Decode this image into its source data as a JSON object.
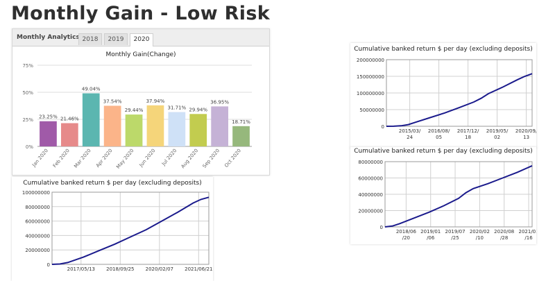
{
  "page": {
    "title": "Monthly Gain - Low Risk"
  },
  "analytics": {
    "header_label": "Monthly Analytics",
    "tabs": [
      "2018",
      "2019",
      "2020"
    ],
    "active_tab": "2020"
  },
  "chart_data": [
    {
      "type": "bar",
      "title": "Monthly Gain(Change)",
      "categories": [
        "Jan 2020",
        "Feb 2020",
        "Mar 2020",
        "Apr 2020",
        "May 2020",
        "Jun 2020",
        "Jul 2020",
        "Aug 2020",
        "Sep 2020",
        "Oct 2020"
      ],
      "values": [
        23.25,
        21.46,
        49.04,
        37.54,
        29.44,
        37.94,
        31.71,
        29.94,
        36.95,
        18.71
      ],
      "value_labels": [
        "23.25%",
        "21.46%",
        "49.04%",
        "37.54%",
        "29.44%",
        "37.94%",
        "31.71%",
        "29.94%",
        "36.95%",
        "18.71%"
      ],
      "colors": [
        "#a05aa8",
        "#e68a8a",
        "#5bb6b0",
        "#fbb489",
        "#bcd96a",
        "#f5d57a",
        "#cfe1f7",
        "#c2cc4f",
        "#c5b2d6",
        "#96b87c"
      ],
      "yticks": [
        "0%",
        "25%",
        "50%",
        "75%"
      ],
      "ylim": [
        0,
        75
      ],
      "grid": true
    },
    {
      "type": "line",
      "title": "Cumulative banked return $ per day (excluding deposits)",
      "xticks": [
        "2015/03/\n24",
        "2016/08/\n05",
        "2017/12/\n18",
        "2019/05/\n02",
        "2020/09/\n13"
      ],
      "yticks": [
        "0",
        "50000000",
        "100000000",
        "150000000",
        "200000000"
      ],
      "ylim": [
        0,
        200000000
      ],
      "points": [
        [
          0,
          0
        ],
        [
          0.05,
          200000
        ],
        [
          0.1,
          1500000
        ],
        [
          0.15,
          5000000
        ],
        [
          0.2,
          12000000
        ],
        [
          0.3,
          26000000
        ],
        [
          0.4,
          40000000
        ],
        [
          0.5,
          56000000
        ],
        [
          0.6,
          73000000
        ],
        [
          0.65,
          84000000
        ],
        [
          0.7,
          98000000
        ],
        [
          0.8,
          118000000
        ],
        [
          0.9,
          140000000
        ],
        [
          0.95,
          150000000
        ],
        [
          1,
          158000000
        ]
      ],
      "series_color": "#1a1a8c"
    },
    {
      "type": "line",
      "title": "Cumulative banked return $ per day (excluding deposits)",
      "xticks": [
        "2018/06\n/20",
        "2019/01\n/06",
        "2019/07\n/25",
        "2020/02\n/10",
        "2020/08\n/28",
        "2021/03\n/16"
      ],
      "yticks": [
        "0",
        "20000000",
        "40000000",
        "60000000",
        "80000000"
      ],
      "ylim": [
        0,
        80000000
      ],
      "points": [
        [
          0,
          0
        ],
        [
          0.05,
          1000000
        ],
        [
          0.1,
          4000000
        ],
        [
          0.2,
          11000000
        ],
        [
          0.3,
          18000000
        ],
        [
          0.4,
          26000000
        ],
        [
          0.5,
          35000000
        ],
        [
          0.55,
          42000000
        ],
        [
          0.6,
          47000000
        ],
        [
          0.7,
          53000000
        ],
        [
          0.8,
          60000000
        ],
        [
          0.9,
          67000000
        ],
        [
          1,
          75000000
        ]
      ],
      "series_color": "#1a1a8c"
    },
    {
      "type": "line",
      "title": "Cumulative banked return $ per day (excluding deposits)",
      "xticks": [
        "2017/05/13",
        "2018/09/25",
        "2020/02/07",
        "2021/06/21"
      ],
      "yticks": [
        "0",
        "20000000",
        "40000000",
        "60000000",
        "80000000",
        "100000000"
      ],
      "ylim": [
        0,
        100000000
      ],
      "points": [
        [
          0,
          0
        ],
        [
          0.05,
          500000
        ],
        [
          0.1,
          2500000
        ],
        [
          0.2,
          10000000
        ],
        [
          0.3,
          19000000
        ],
        [
          0.4,
          28000000
        ],
        [
          0.5,
          38000000
        ],
        [
          0.6,
          48000000
        ],
        [
          0.7,
          60000000
        ],
        [
          0.8,
          72000000
        ],
        [
          0.9,
          85000000
        ],
        [
          0.95,
          90000000
        ],
        [
          1,
          93000000
        ]
      ],
      "series_color": "#1a1a8c"
    }
  ]
}
